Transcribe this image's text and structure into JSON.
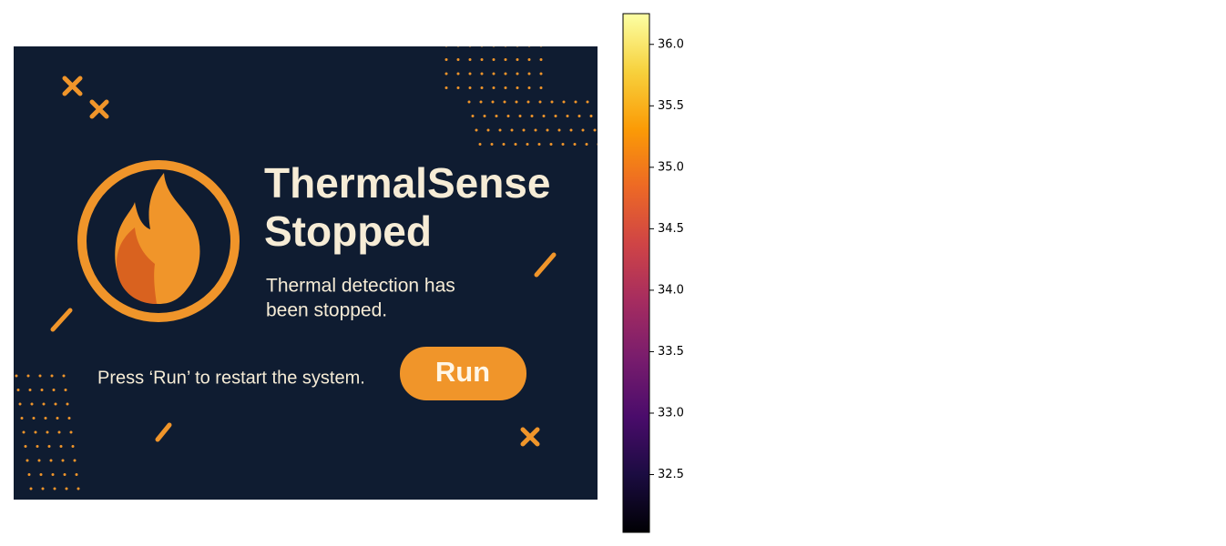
{
  "banner": {
    "title_lines": [
      "ThermalSense",
      "Stopped"
    ],
    "message_lines": [
      "Thermal detection has",
      "been stopped."
    ],
    "instruction": "Press ‘Run’ to restart the system.",
    "button": "Run"
  },
  "colorbar": {
    "colormap": "inferno",
    "lim": [
      32.03,
      36.25
    ],
    "ticks": [
      32.5,
      {
        "value": 33,
        "label": "33.0"
      },
      33.5,
      {
        "value": 34,
        "label": "34.0"
      },
      34.5,
      {
        "value": 35,
        "label": "35.0"
      },
      35.5,
      {
        "value": 36,
        "label": "36.0"
      }
    ]
  }
}
